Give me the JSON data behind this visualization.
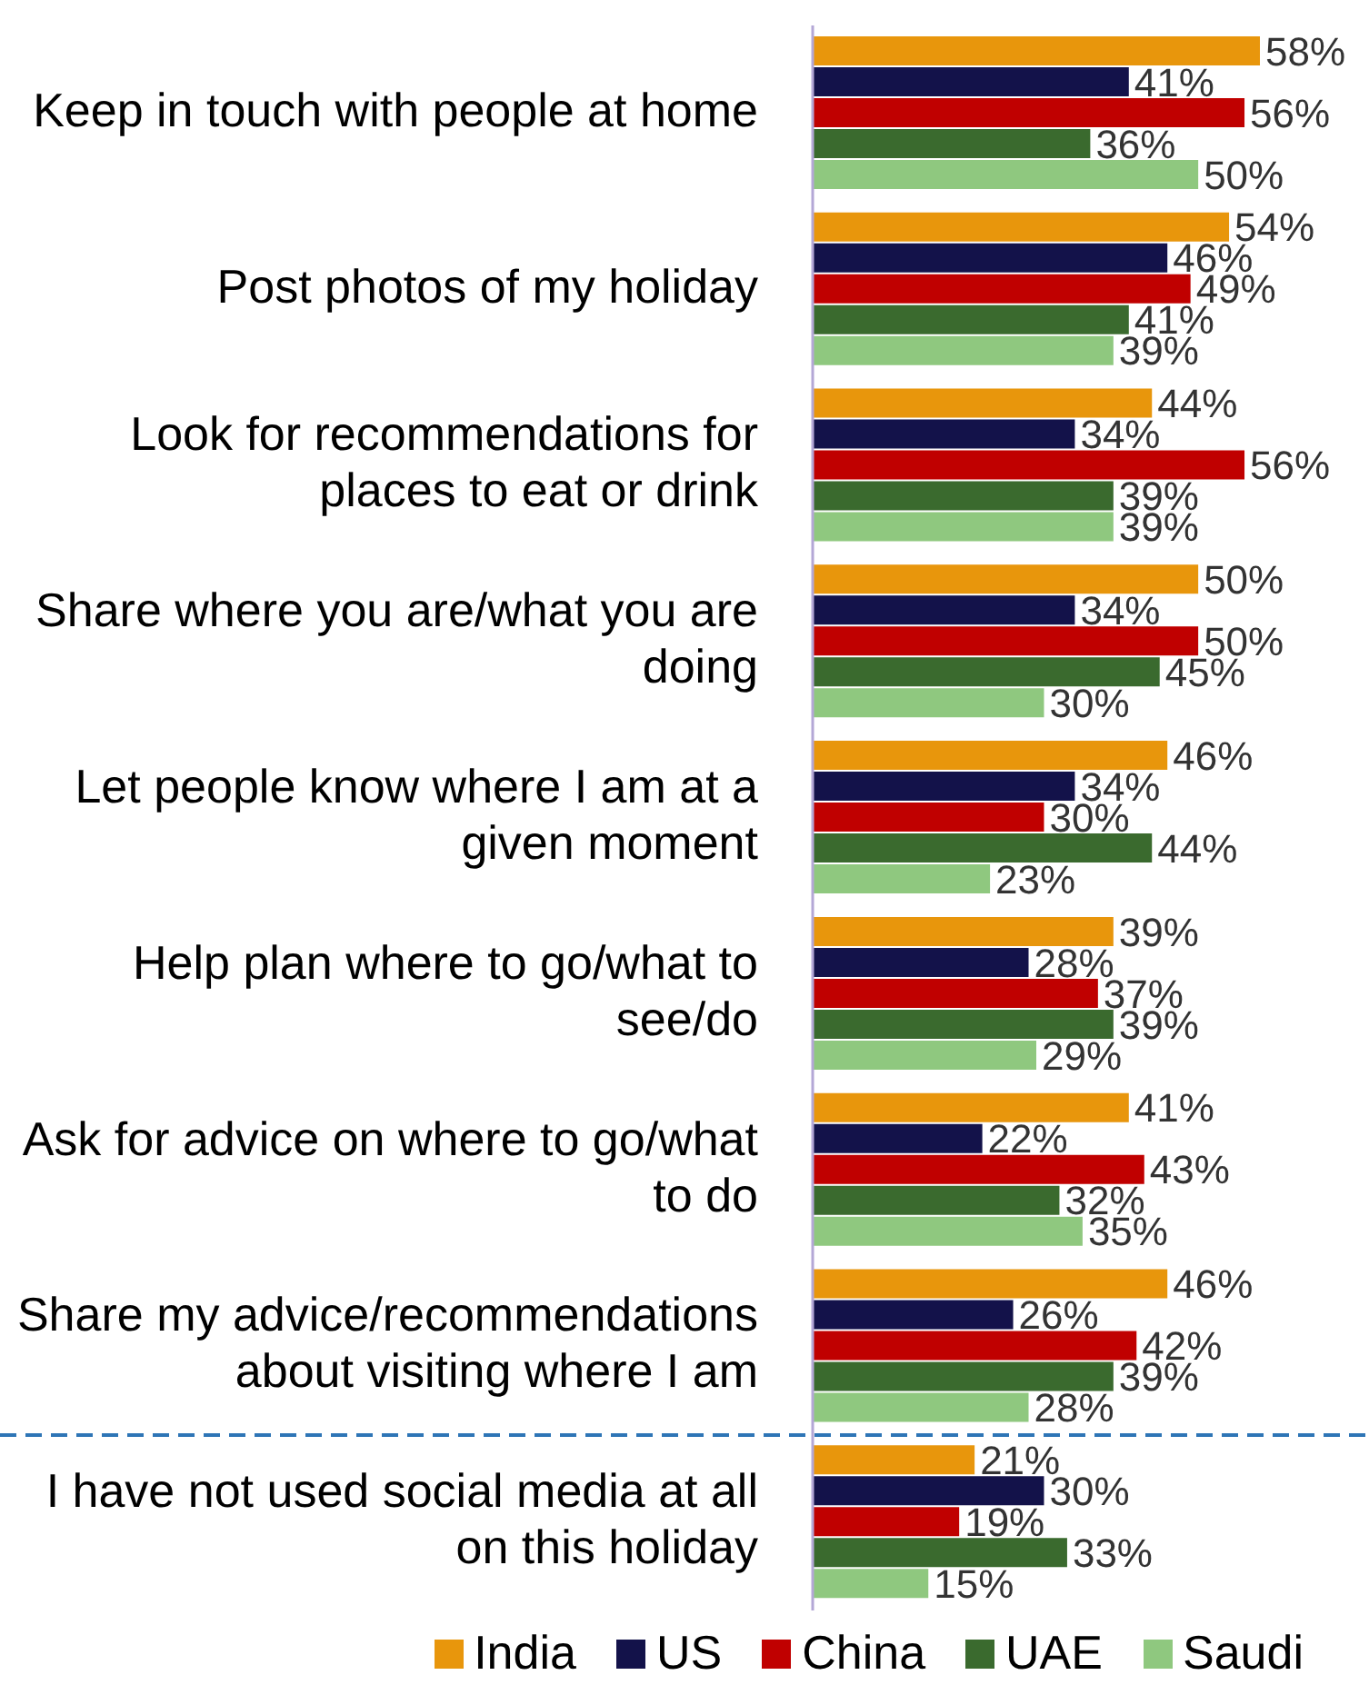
{
  "chart_data": {
    "type": "bar",
    "orientation": "horizontal",
    "data_labels": true,
    "legend": "bottom",
    "categories": [
      "Keep in touch with people at home",
      "Post photos of my holiday",
      "Look for recommendations for places to eat or drink",
      "Share where you are/what you are doing",
      "Let people know where I am at a given moment",
      "Help plan where to go/what to see/do",
      "Ask for advice on where to go/what to do",
      "Share my advice/recommendations about visiting where I am",
      "I have not used social media at all on this holiday"
    ],
    "series": [
      {
        "name": "India",
        "color": "#e8960c",
        "values": [
          58,
          54,
          44,
          50,
          46,
          39,
          41,
          46,
          21
        ],
        "value_labels": [
          "58%",
          "54%",
          "44%",
          "50%",
          "46%",
          "39%",
          "41%",
          "46%",
          "21%"
        ]
      },
      {
        "name": "US",
        "color": "#13124a",
        "values": [
          41,
          46,
          34,
          34,
          34,
          28,
          22,
          26,
          30
        ],
        "value_labels": [
          "41%",
          "46%",
          "34%",
          "34%",
          "34%",
          "28%",
          "22%",
          "26%",
          "30%"
        ]
      },
      {
        "name": "China",
        "color": "#c00000",
        "values": [
          56,
          49,
          56,
          50,
          30,
          37,
          43,
          42,
          19
        ],
        "value_labels": [
          "56%",
          "49%",
          "56%",
          "50%",
          "30%",
          "37%",
          "43%",
          "42%",
          "19%"
        ]
      },
      {
        "name": "UAE",
        "color": "#3a6a2e",
        "values": [
          36,
          41,
          39,
          45,
          44,
          39,
          32,
          39,
          33
        ],
        "value_labels": [
          "36%",
          "41%",
          "39%",
          "45%",
          "44%",
          "39%",
          "32%",
          "39%",
          "33%"
        ]
      },
      {
        "name": "Saudi",
        "color": "#8fc87f",
        "values": [
          50,
          39,
          39,
          30,
          23,
          29,
          35,
          28,
          15
        ],
        "value_labels": [
          "50%",
          "39%",
          "39%",
          "30%",
          "23%",
          "29%",
          "35%",
          "28%",
          "15%"
        ]
      }
    ]
  }
}
